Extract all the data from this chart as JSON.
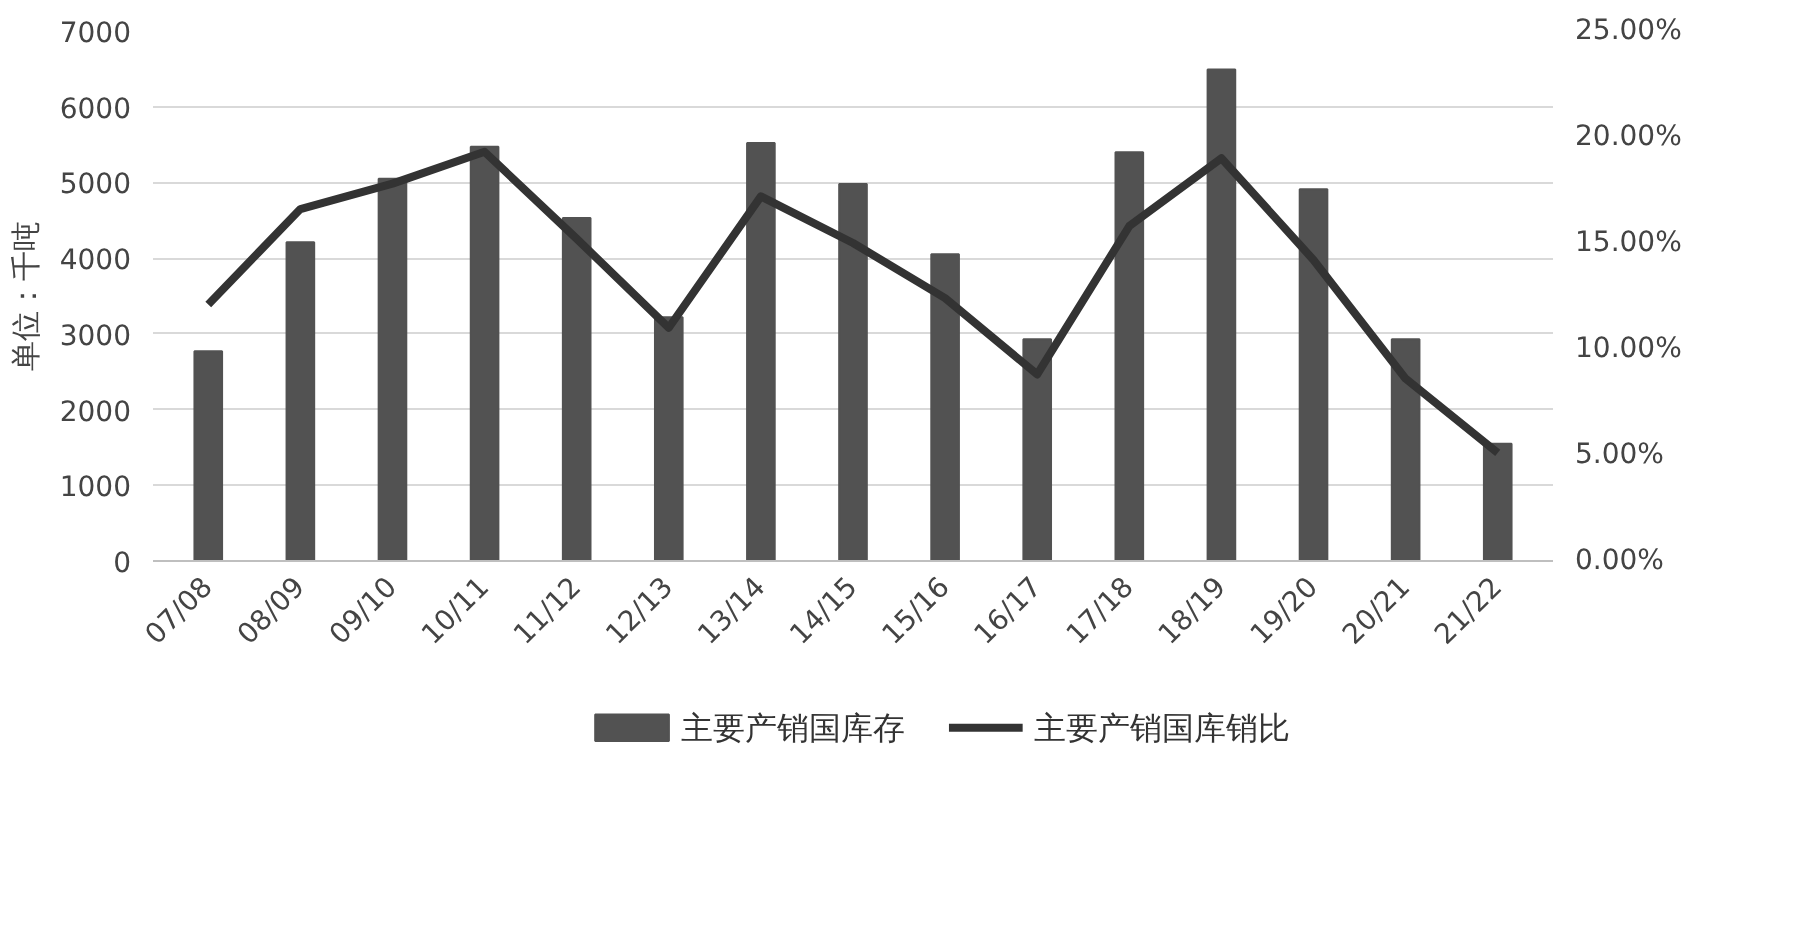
{
  "chart_data": {
    "type": "bar",
    "ylabel": "单位：千吨",
    "categories": [
      "07/08",
      "08/09",
      "09/10",
      "10/11",
      "11/12",
      "12/13",
      "13/14",
      "14/15",
      "15/16",
      "16/17",
      "17/18",
      "18/19",
      "19/20",
      "20/21",
      "21/22"
    ],
    "series": [
      {
        "name": "主要产销国库存",
        "color": "#525252",
        "values": [
          2770,
          4210,
          5050,
          5470,
          4530,
          3220,
          5520,
          4980,
          4050,
          2930,
          5400,
          6490,
          4910,
          2930,
          1550
        ]
      },
      {
        "name": "主要产销国库销比",
        "type": "line",
        "axis": "y2",
        "color": "#333333",
        "values": [
          12.1,
          16.6,
          17.8,
          19.3,
          15.2,
          11.0,
          17.2,
          15.0,
          12.4,
          8.8,
          15.8,
          19.0,
          14.2,
          8.6,
          5.1
        ]
      }
    ],
    "ylim": [
      0,
      7000
    ],
    "yticks": [
      0,
      1000,
      2000,
      3000,
      4000,
      5000,
      6000,
      7000
    ],
    "y2lim": [
      0,
      25
    ],
    "y2ticks": [
      {
        "value": 0,
        "label": "0.00%"
      },
      {
        "value": 5,
        "label": "5.00%"
      },
      {
        "value": 10,
        "label": "10.00%"
      },
      {
        "value": 15,
        "label": "15.00%"
      },
      {
        "value": 20,
        "label": "20.00%"
      },
      {
        "value": 25,
        "label": "25.00%"
      }
    ],
    "grid": "y",
    "legend": "bottom",
    "marker": "none",
    "line_style": "solid"
  }
}
